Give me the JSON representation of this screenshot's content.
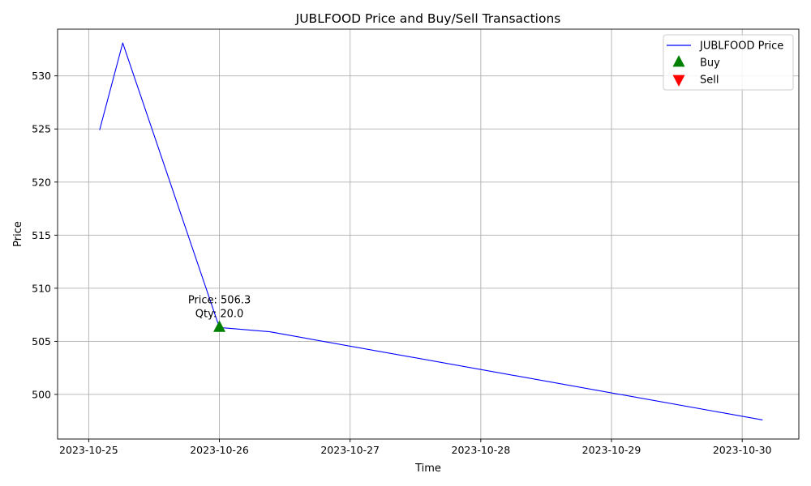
{
  "chart_data": {
    "type": "line",
    "title": "JUBLFOOD Price and Buy/Sell Transactions",
    "xlabel": "Time",
    "ylabel": "Price",
    "x_ticks": [
      "2023-10-25",
      "2023-10-26",
      "2023-10-27",
      "2023-10-28",
      "2023-10-29",
      "2023-10-30"
    ],
    "y_ticks": [
      500,
      505,
      510,
      515,
      520,
      525,
      530
    ],
    "xlim": [
      "2023-10-24 18:17",
      "2023-10-30 10:24"
    ],
    "ylim": [
      495.8,
      534.4
    ],
    "grid": true,
    "legend_position": "top-right",
    "series": [
      {
        "name": "JUBLFOOD Price",
        "color": "#0000ff",
        "points": [
          {
            "x": "2023-10-25 02:00",
            "y": 524.9
          },
          {
            "x": "2023-10-25 06:15",
            "y": 533.1
          },
          {
            "x": "2023-10-26 00:00",
            "y": 506.3
          },
          {
            "x": "2023-10-26 09:15",
            "y": 505.9
          },
          {
            "x": "2023-10-30 03:45",
            "y": 497.6
          }
        ]
      }
    ],
    "markers": [
      {
        "name": "Buy",
        "shape": "triangle-up",
        "color": "#008000",
        "points": [
          {
            "x": "2023-10-26 00:00",
            "y": 506.3
          }
        ]
      },
      {
        "name": "Sell",
        "shape": "triangle-down",
        "color": "#ff0000",
        "points": []
      }
    ],
    "annotations": [
      {
        "x": "2023-10-26 00:00",
        "y": 506.3,
        "line1": "Price: 506.3",
        "line2": "Qty: 20.0"
      }
    ],
    "legend": [
      {
        "label": "JUBLFOOD Price",
        "shape": "line",
        "color": "#0000ff"
      },
      {
        "label": "Buy",
        "shape": "triangle-up",
        "color": "#008000"
      },
      {
        "label": "Sell",
        "shape": "triangle-down",
        "color": "#ff0000"
      }
    ]
  }
}
